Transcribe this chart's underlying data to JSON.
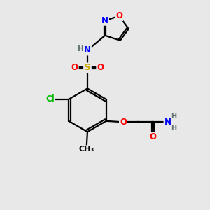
{
  "bg_color": "#e8e8e8",
  "atom_colors": {
    "N": "#0000ff",
    "O": "#ff0000",
    "S": "#ccaa00",
    "Cl": "#00bb00",
    "C": "#000000",
    "H": "#607070"
  },
  "font_size": 8.5,
  "bond_width": 1.6,
  "figsize": [
    3.0,
    3.0
  ],
  "dpi": 100,
  "xlim": [
    0,
    10
  ],
  "ylim": [
    0,
    10
  ]
}
